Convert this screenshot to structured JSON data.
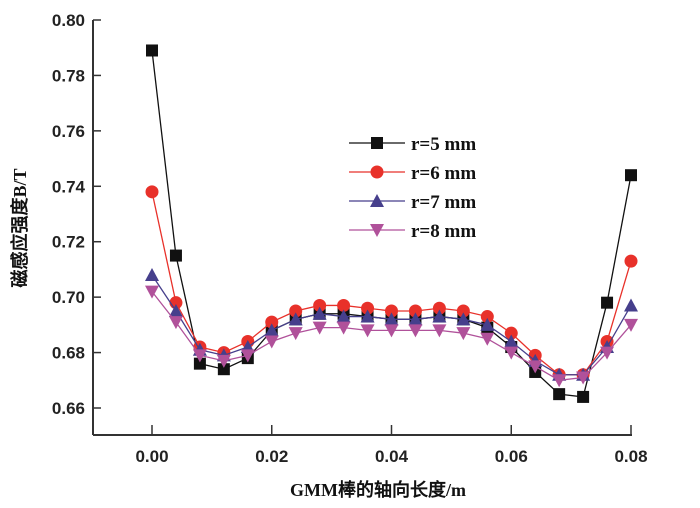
{
  "chart_data": {
    "type": "line",
    "title": "",
    "xlabel": "GMM棒的轴向长度/m",
    "ylabel": "磁感应强度B/T",
    "xlim": [
      -0.01,
      0.08
    ],
    "ylim": [
      0.65,
      0.8
    ],
    "xticks": [
      "0.00",
      "0.02",
      "0.04",
      "0.06",
      "0.08"
    ],
    "yticks": [
      "0.66",
      "0.68",
      "0.70",
      "0.72",
      "0.74",
      "0.76",
      "0.78",
      "0.80"
    ],
    "legend_position": "center",
    "x": [
      0,
      0.004,
      0.008,
      0.012,
      0.016,
      0.02,
      0.024,
      0.028,
      0.032,
      0.036,
      0.04,
      0.044,
      0.048,
      0.052,
      0.056,
      0.06,
      0.064,
      0.068,
      0.072,
      0.076,
      0.08
    ],
    "series": [
      {
        "name": "r=5 mm",
        "color": "#111111",
        "marker": "square",
        "values": [
          0.789,
          0.715,
          0.676,
          0.674,
          0.678,
          0.688,
          0.692,
          0.694,
          0.694,
          0.693,
          0.692,
          0.692,
          0.693,
          0.692,
          0.689,
          0.682,
          0.673,
          0.665,
          0.664,
          0.698,
          0.744
        ]
      },
      {
        "name": "r=6 mm",
        "color": "#e8312a",
        "marker": "circle",
        "values": [
          0.738,
          0.698,
          0.682,
          0.68,
          0.684,
          0.691,
          0.695,
          0.697,
          0.697,
          0.696,
          0.695,
          0.695,
          0.696,
          0.695,
          0.693,
          0.687,
          0.679,
          0.672,
          0.672,
          0.684,
          0.713
        ]
      },
      {
        "name": "r=7 mm",
        "color": "#463f8c",
        "marker": "triangle-up",
        "values": [
          0.708,
          0.695,
          0.681,
          0.679,
          0.682,
          0.688,
          0.692,
          0.694,
          0.693,
          0.693,
          0.692,
          0.692,
          0.693,
          0.692,
          0.69,
          0.684,
          0.677,
          0.672,
          0.672,
          0.682,
          0.697
        ]
      },
      {
        "name": "r=8 mm",
        "color": "#b0519a",
        "marker": "triangle-down",
        "values": [
          0.702,
          0.691,
          0.679,
          0.677,
          0.679,
          0.684,
          0.687,
          0.689,
          0.689,
          0.688,
          0.688,
          0.688,
          0.688,
          0.687,
          0.685,
          0.68,
          0.675,
          0.67,
          0.671,
          0.68,
          0.69
        ]
      }
    ]
  }
}
